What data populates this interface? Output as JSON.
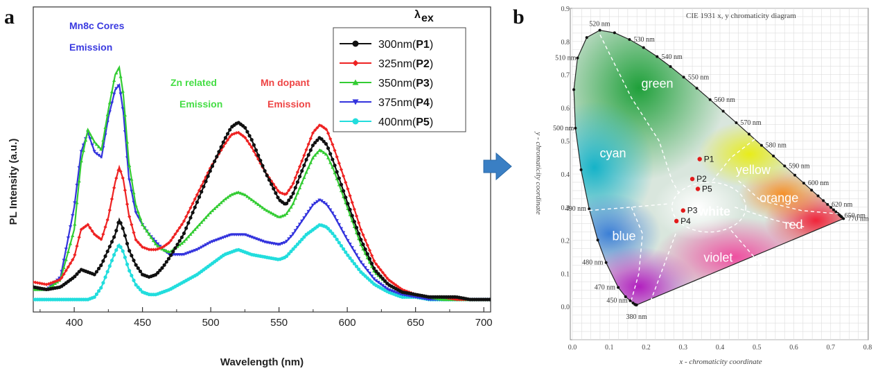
{
  "panel_a_label": "a",
  "panel_b_label": "b",
  "arrow_icon": "right-arrow-icon",
  "chart_data": [
    {
      "type": "line",
      "title": "",
      "xlabel": "Wavelength (nm)",
      "ylabel": "PL Intensity (a.u.)",
      "xlim": [
        370,
        705
      ],
      "ylim": [
        0,
        1.0
      ],
      "xticks": [
        400,
        450,
        500,
        550,
        600,
        650,
        700
      ],
      "legend_title": "λ",
      "legend_title_sub": "ex",
      "legend_placement": "top-right",
      "annotations": [
        {
          "line1": "Mn8c Cores",
          "line2": "Emission",
          "color": "#3a3ae0"
        },
        {
          "line1": "Zn related",
          "line2": "Emission",
          "color": "#44dd44"
        },
        {
          "line1": "Mn dopant",
          "line2": "Emission",
          "color": "#ee4444"
        }
      ],
      "x": [
        370,
        380,
        390,
        400,
        405,
        410,
        415,
        420,
        425,
        430,
        433,
        436,
        440,
        445,
        450,
        455,
        460,
        465,
        470,
        480,
        490,
        500,
        510,
        515,
        520,
        525,
        530,
        540,
        550,
        555,
        560,
        570,
        575,
        580,
        585,
        590,
        600,
        610,
        620,
        630,
        640,
        650,
        660,
        670,
        680,
        690,
        700
      ],
      "series": [
        {
          "name": "300nm",
          "tag": "P1",
          "color": "#111111",
          "marker": "circle",
          "values": [
            0.05,
            0.04,
            0.05,
            0.09,
            0.12,
            0.11,
            0.1,
            0.14,
            0.2,
            0.26,
            0.32,
            0.28,
            0.2,
            0.14,
            0.1,
            0.09,
            0.1,
            0.13,
            0.17,
            0.26,
            0.39,
            0.52,
            0.64,
            0.69,
            0.71,
            0.69,
            0.64,
            0.51,
            0.4,
            0.38,
            0.42,
            0.56,
            0.62,
            0.65,
            0.62,
            0.55,
            0.39,
            0.24,
            0.12,
            0.06,
            0.03,
            0.02,
            0.01,
            0.01,
            0.01,
            0.0,
            0.0
          ]
        },
        {
          "name": "325nm",
          "tag": "P2",
          "color": "#ee2222",
          "marker": "diamond",
          "values": [
            0.07,
            0.06,
            0.08,
            0.17,
            0.28,
            0.3,
            0.26,
            0.24,
            0.33,
            0.47,
            0.53,
            0.48,
            0.34,
            0.24,
            0.21,
            0.2,
            0.2,
            0.21,
            0.23,
            0.31,
            0.42,
            0.53,
            0.62,
            0.66,
            0.67,
            0.65,
            0.61,
            0.51,
            0.43,
            0.42,
            0.46,
            0.6,
            0.67,
            0.7,
            0.68,
            0.61,
            0.45,
            0.28,
            0.15,
            0.08,
            0.04,
            0.02,
            0.01,
            0.01,
            0.0,
            0.0,
            0.0
          ]
        },
        {
          "name": "350nm",
          "tag": "P3",
          "color": "#33cc33",
          "marker": "triangle-up",
          "values": [
            0.04,
            0.04,
            0.08,
            0.28,
            0.55,
            0.68,
            0.63,
            0.6,
            0.76,
            0.9,
            0.93,
            0.82,
            0.55,
            0.38,
            0.3,
            0.26,
            0.22,
            0.2,
            0.19,
            0.23,
            0.29,
            0.35,
            0.4,
            0.42,
            0.43,
            0.42,
            0.4,
            0.36,
            0.33,
            0.34,
            0.38,
            0.51,
            0.57,
            0.6,
            0.58,
            0.52,
            0.37,
            0.22,
            0.11,
            0.06,
            0.03,
            0.02,
            0.01,
            0.0,
            0.0,
            0.0,
            0.0
          ]
        },
        {
          "name": "375nm",
          "tag": "P4",
          "color": "#3333dd",
          "marker": "triangle-down",
          "values": [
            0.04,
            0.04,
            0.09,
            0.37,
            0.59,
            0.67,
            0.59,
            0.57,
            0.73,
            0.84,
            0.86,
            0.75,
            0.49,
            0.35,
            0.3,
            0.26,
            0.23,
            0.2,
            0.18,
            0.18,
            0.2,
            0.23,
            0.25,
            0.26,
            0.26,
            0.26,
            0.25,
            0.23,
            0.22,
            0.23,
            0.26,
            0.34,
            0.38,
            0.4,
            0.38,
            0.34,
            0.24,
            0.15,
            0.08,
            0.04,
            0.02,
            0.01,
            0.0,
            0.0,
            0.0,
            0.0,
            0.0
          ]
        },
        {
          "name": "400nm",
          "tag": "P5",
          "color": "#22dddd",
          "marker": "circle",
          "values": [
            0.0,
            0.0,
            0.0,
            0.0,
            0.0,
            0.0,
            0.01,
            0.05,
            0.12,
            0.19,
            0.22,
            0.19,
            0.12,
            0.06,
            0.03,
            0.02,
            0.02,
            0.03,
            0.04,
            0.07,
            0.1,
            0.14,
            0.18,
            0.19,
            0.2,
            0.19,
            0.18,
            0.17,
            0.16,
            0.17,
            0.2,
            0.26,
            0.28,
            0.3,
            0.29,
            0.26,
            0.18,
            0.11,
            0.06,
            0.03,
            0.01,
            0.01,
            0.0,
            0.0,
            0.0,
            0.0,
            0.0
          ]
        }
      ]
    },
    {
      "type": "scatter",
      "title": "CIE 1931 x, y chromaticity diagram",
      "xlabel": "x - chromaticity coordinate",
      "ylabel": "y - chromaticity coordinate",
      "xlim": [
        0,
        0.8
      ],
      "ylim": [
        -0.1,
        0.9
      ],
      "xticks": [
        "0.0",
        "0.1",
        "0.2",
        "0.3",
        "0.4",
        "0.5",
        "0.6",
        "0.7",
        "0.8"
      ],
      "yticks": [
        "0.0",
        "0.1",
        "0.2",
        "0.3",
        "0.4",
        "0.5",
        "0.6",
        "0.7",
        "0.8",
        "0.9"
      ],
      "points": [
        {
          "label": "P1",
          "x": 0.345,
          "y": 0.445
        },
        {
          "label": "P2",
          "x": 0.325,
          "y": 0.385
        },
        {
          "label": "P5",
          "x": 0.34,
          "y": 0.355
        },
        {
          "label": "P3",
          "x": 0.3,
          "y": 0.29
        },
        {
          "label": "P4",
          "x": 0.282,
          "y": 0.258
        }
      ],
      "regions": [
        {
          "name": "green",
          "x": 0.23,
          "y": 0.66
        },
        {
          "name": "cyan",
          "x": 0.11,
          "y": 0.45
        },
        {
          "name": "yellow",
          "x": 0.49,
          "y": 0.4
        },
        {
          "name": "orange",
          "x": 0.56,
          "y": 0.315
        },
        {
          "name": "white",
          "x": 0.385,
          "y": 0.275
        },
        {
          "name": "red",
          "x": 0.6,
          "y": 0.235
        },
        {
          "name": "blue",
          "x": 0.14,
          "y": 0.2
        },
        {
          "name": "violet",
          "x": 0.395,
          "y": 0.135
        }
      ],
      "wavelength_labels": [
        {
          "text": "520 nm",
          "x": 0.074,
          "y": 0.834
        },
        {
          "text": "530 nm",
          "x": 0.155,
          "y": 0.806
        },
        {
          "text": "510 nm",
          "x": 0.014,
          "y": 0.75
        },
        {
          "text": "540 nm",
          "x": 0.23,
          "y": 0.754
        },
        {
          "text": "550 nm",
          "x": 0.302,
          "y": 0.692
        },
        {
          "text": "560 nm",
          "x": 0.373,
          "y": 0.624
        },
        {
          "text": "570 nm",
          "x": 0.444,
          "y": 0.555
        },
        {
          "text": "500 nm",
          "x": 0.008,
          "y": 0.538
        },
        {
          "text": "580 nm",
          "x": 0.512,
          "y": 0.487
        },
        {
          "text": "590 nm",
          "x": 0.575,
          "y": 0.424
        },
        {
          "text": "600 nm",
          "x": 0.627,
          "y": 0.373
        },
        {
          "text": "620 nm",
          "x": 0.691,
          "y": 0.308
        },
        {
          "text": "650 nm",
          "x": 0.726,
          "y": 0.274
        },
        {
          "text": "490 nm",
          "x": 0.045,
          "y": 0.295
        },
        {
          "text": "770 nm",
          "x": 0.735,
          "y": 0.265
        },
        {
          "text": "480 nm",
          "x": 0.091,
          "y": 0.133
        },
        {
          "text": "470 nm",
          "x": 0.124,
          "y": 0.058
        },
        {
          "text": "450 nm",
          "x": 0.157,
          "y": 0.018
        },
        {
          "text": "380 nm",
          "x": 0.174,
          "y": 0.005
        }
      ]
    }
  ]
}
